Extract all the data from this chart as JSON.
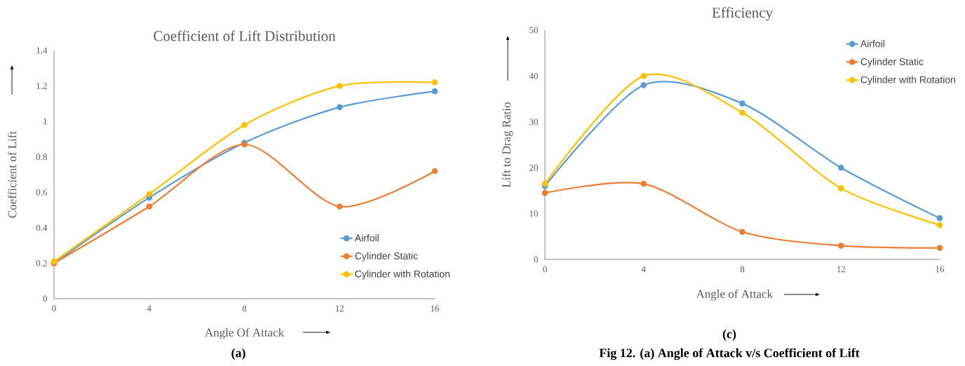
{
  "chart_data": [
    {
      "type": "line",
      "title": "Coefficient of Lift Distribution",
      "xlabel": "Angle Of Attack",
      "ylabel": "Coefficient of Lift",
      "x": [
        0,
        4,
        8,
        12,
        16
      ],
      "xlim": [
        0,
        16
      ],
      "xticks": [
        0,
        4,
        8,
        12,
        16
      ],
      "ylim": [
        0,
        1.4
      ],
      "yticks": [
        0,
        0.2,
        0.4,
        0.6,
        0.8,
        1,
        1.2,
        1.4
      ],
      "marker": "circle",
      "line_style": "solid",
      "legend": "bottom right",
      "series": [
        {
          "name": "Airfoil",
          "color": "#5b9bd5",
          "values": [
            0.2,
            0.57,
            0.88,
            1.08,
            1.17
          ]
        },
        {
          "name": "Cylinder Static",
          "color": "#ed7d31",
          "values": [
            0.2,
            0.52,
            0.87,
            0.52,
            0.72
          ]
        },
        {
          "name": "Cylinder with Rotation",
          "color": "#ffc000",
          "values": [
            0.21,
            0.59,
            0.98,
            1.2,
            1.22
          ]
        }
      ],
      "annotations": [
        "**(a)**"
      ]
    },
    {
      "type": "line",
      "title": "Efficiency",
      "xlabel": "Angle of Attack",
      "ylabel": "Lift to Drag Ratio",
      "x": [
        0,
        4,
        8,
        12,
        16
      ],
      "xlim": [
        0,
        16
      ],
      "xticks": [
        0,
        4,
        8,
        12,
        16
      ],
      "ylim": [
        0,
        50
      ],
      "yticks": [
        0,
        10,
        20,
        30,
        40,
        50
      ],
      "marker": "circle",
      "line_style": "solid",
      "legend": "top right",
      "series": [
        {
          "name": "Airfoil",
          "color": "#5b9bd5",
          "values": [
            16,
            38,
            34,
            20,
            9
          ]
        },
        {
          "name": "Cylinder Static",
          "color": "#ed7d31",
          "values": [
            14.5,
            16.5,
            6,
            3,
            2.5
          ]
        },
        {
          "name": "Cylinder with Rotation",
          "color": "#ffc000",
          "values": [
            16.5,
            40,
            32,
            15.5,
            7.5
          ]
        }
      ],
      "annotations": [
        "**(c)**",
        "**Fig 12. (a) Angle of Attack v/s Coefficient of Lift**"
      ]
    }
  ]
}
